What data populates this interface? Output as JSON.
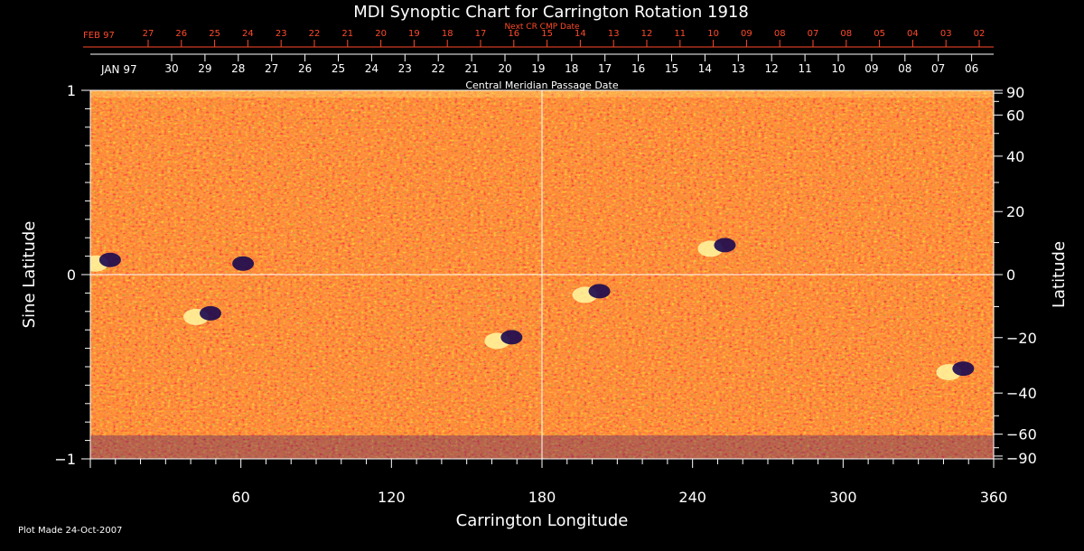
{
  "chart_data": {
    "type": "heatmap",
    "title": "MDI Synoptic Chart for Carrington Rotation 1918",
    "xlabel": "Carrington Longitude",
    "ylabel": "Sine Latitude",
    "y2label": "Latitude",
    "xlim": [
      0,
      360
    ],
    "ylim": [
      -1,
      1
    ],
    "x_ticks": [
      60,
      120,
      180,
      240,
      300,
      360
    ],
    "y_ticks": [
      -1,
      0,
      1
    ],
    "y_tick_labels": [
      "−1",
      "0",
      "1"
    ],
    "lat_ticks": [
      90,
      60,
      40,
      20,
      0,
      -20,
      -40,
      -60,
      -90
    ],
    "lat_tick_labels": [
      "90",
      "60",
      "40",
      "20",
      "0",
      "−20",
      "−40",
      "−60",
      "−90"
    ],
    "top_axis_1": {
      "label": "Next CR CMP Date",
      "month": "FEB 97",
      "ticks": [
        "27",
        "26",
        "25",
        "24",
        "23",
        "22",
        "21",
        "20",
        "19",
        "18",
        "17",
        "16",
        "15",
        "14",
        "13",
        "12",
        "11",
        "10",
        "09",
        "08",
        "07",
        "08",
        "05",
        "04",
        "03",
        "02"
      ],
      "color": "#ff4a2a"
    },
    "top_axis_2": {
      "label": "Central Meridian Passage Date",
      "month": "JAN 97",
      "ticks": [
        "30",
        "29",
        "28",
        "27",
        "26",
        "25",
        "24",
        "23",
        "22",
        "21",
        "20",
        "19",
        "18",
        "17",
        "16",
        "15",
        "14",
        "13",
        "12",
        "11",
        "10",
        "09",
        "08",
        "07",
        "06"
      ]
    },
    "grid": "lines at longitude 180 and sine latitude 0",
    "colormap": [
      "#2a0a6e",
      "#ff4a10",
      "#ffff80"
    ],
    "features": [
      {
        "longitude": 5,
        "sine_latitude": 0.07,
        "polarity": "bipolar"
      },
      {
        "longitude": 45,
        "sine_latitude": -0.22,
        "polarity": "bipolar"
      },
      {
        "longitude": 58,
        "sine_latitude": 0.05,
        "polarity": "negative"
      },
      {
        "longitude": 165,
        "sine_latitude": -0.35,
        "polarity": "bipolar"
      },
      {
        "longitude": 200,
        "sine_latitude": -0.1,
        "polarity": "bipolar"
      },
      {
        "longitude": 250,
        "sine_latitude": 0.15,
        "polarity": "bipolar"
      },
      {
        "longitude": 345,
        "sine_latitude": -0.52,
        "polarity": "bipolar"
      }
    ]
  },
  "footer": {
    "plot_made": "Plot Made 24-Oct-2007"
  }
}
